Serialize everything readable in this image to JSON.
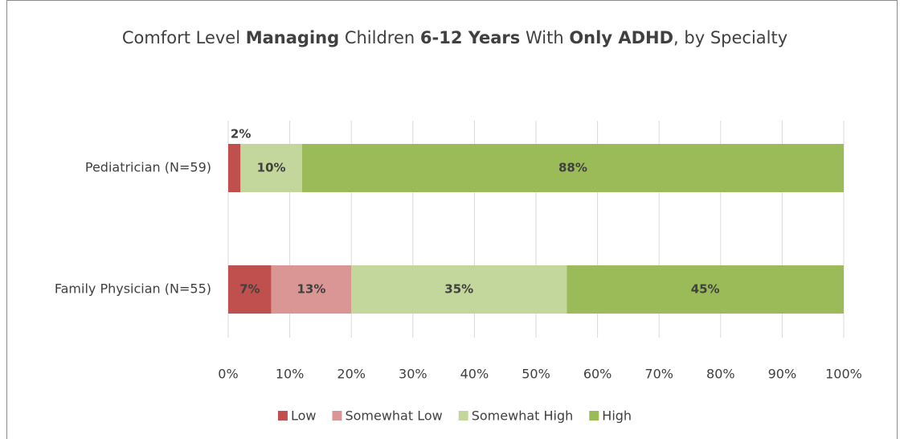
{
  "chart_data": {
    "type": "stacked_barh",
    "title": [
      {
        "text": "Comfort Level ",
        "bold": false
      },
      {
        "text": "Managing",
        "bold": true
      },
      {
        "text": " Children ",
        "bold": false
      },
      {
        "text": "6-12 Years",
        "bold": true
      },
      {
        "text": " With ",
        "bold": false
      },
      {
        "text": "Only ADHD",
        "bold": true
      },
      {
        "text": ", by Specialty",
        "bold": false
      }
    ],
    "categories": [
      "Pediatrician (N=59)",
      "Family Physician (N=55)"
    ],
    "series": [
      {
        "name": "Low",
        "color": "#c0504d",
        "values": [
          2,
          7
        ],
        "value_labels": [
          "2%",
          "7%"
        ]
      },
      {
        "name": "Somewhat Low",
        "color": "#d99694",
        "values": [
          0,
          13
        ],
        "value_labels": [
          null,
          "13%"
        ]
      },
      {
        "name": "Somewhat High",
        "color": "#c3d69b",
        "values": [
          10,
          35
        ],
        "value_labels": [
          "10%",
          "35%"
        ]
      },
      {
        "name": "High",
        "color": "#9bbb59",
        "values": [
          88,
          45
        ],
        "value_labels": [
          "88%",
          "45%"
        ]
      }
    ],
    "xlim": [
      0,
      100
    ],
    "xticks": [
      {
        "value": 0,
        "label": "0%"
      },
      {
        "value": 10,
        "label": "10%"
      },
      {
        "value": 20,
        "label": "20%"
      },
      {
        "value": 30,
        "label": "30%"
      },
      {
        "value": 40,
        "label": "40%"
      },
      {
        "value": 50,
        "label": "50%"
      },
      {
        "value": 60,
        "label": "60%"
      },
      {
        "value": 70,
        "label": "70%"
      },
      {
        "value": 80,
        "label": "80%"
      },
      {
        "value": 90,
        "label": "90%"
      },
      {
        "value": 100,
        "label": "100%"
      }
    ],
    "grid": true,
    "legend": "bottom"
  }
}
